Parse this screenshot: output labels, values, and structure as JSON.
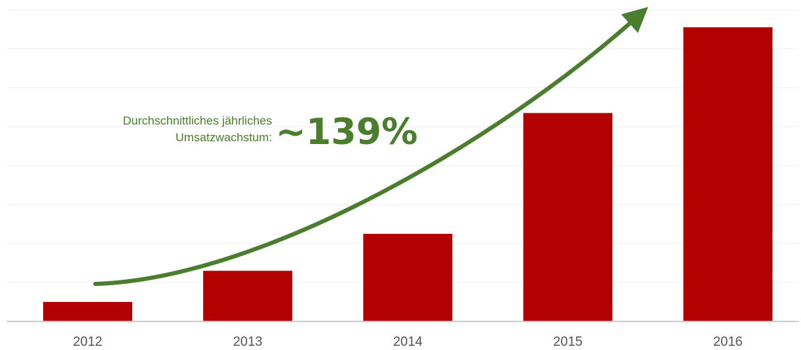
{
  "colors": {
    "bar": "#b30000",
    "arrow": "#4a7d2c",
    "grid": "#ececec",
    "axis": "#cccccc",
    "tick_text": "#555555"
  },
  "chart_data": {
    "type": "bar",
    "categories": [
      "2012",
      "2013",
      "2014",
      "2015",
      "2016"
    ],
    "series": [
      {
        "values": [
          1,
          2.6,
          4.5,
          10.7,
          15.1
        ]
      }
    ],
    "xlabel": "",
    "ylabel": "",
    "ylim": [
      0,
      16
    ],
    "grid": true,
    "annotation": {
      "line1": "Durchschnittliches jährliches",
      "line2": "Umsatzwachstum:",
      "value": "~139%",
      "arrow": "curved growth arrow from 2012 to beyond 2016"
    }
  }
}
